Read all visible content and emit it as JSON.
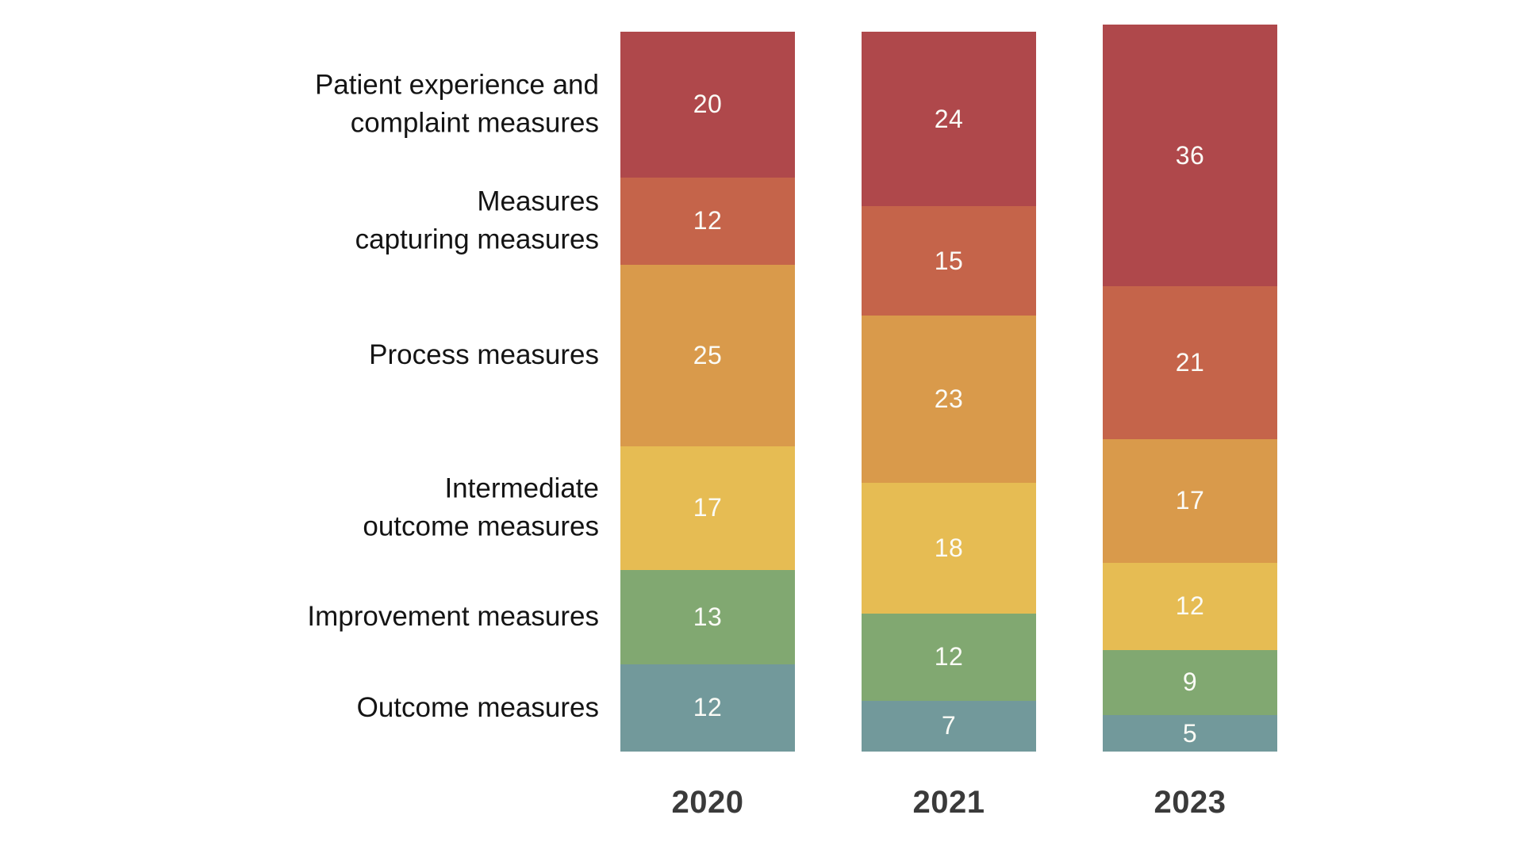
{
  "page": {
    "background_color": "#ffffff",
    "title": ""
  },
  "chart_data": {
    "type": "bar",
    "variant": "stacked-vertical",
    "title": "",
    "xlabel": "",
    "ylabel": "",
    "grid": "off",
    "axes_shown": false,
    "legend_position": "none (series labels listed at left, aligned with first bar segments)",
    "value_labels_shown": true,
    "categories": [
      "2020",
      "2021",
      "2023"
    ],
    "category_totals": [
      99,
      99,
      100
    ],
    "series": [
      {
        "name": "Patient experience and complaint measures",
        "label_lines": [
          "Patient experience and",
          "complaint measures"
        ],
        "color": "#af484b",
        "values": [
          20,
          24,
          36
        ]
      },
      {
        "name": "Measures capturing measures",
        "label_lines": [
          "Measures",
          "capturing measures"
        ],
        "color": "#c5644a",
        "values": [
          12,
          15,
          21
        ]
      },
      {
        "name": "Process measures",
        "label_lines": [
          "Process measures"
        ],
        "color": "#d99a4b",
        "values": [
          25,
          23,
          17
        ]
      },
      {
        "name": "Intermediate outcome measures",
        "label_lines": [
          "Intermediate",
          "outcome measures"
        ],
        "color": "#e6bc53",
        "values": [
          17,
          18,
          12
        ]
      },
      {
        "name": "Improvement measures",
        "label_lines": [
          "Improvement measures"
        ],
        "color": "#81a871",
        "values": [
          13,
          12,
          9
        ]
      },
      {
        "name": "Outcome measures",
        "label_lines": [
          "Outcome measures"
        ],
        "color": "#72999b",
        "values": [
          12,
          7,
          5
        ]
      }
    ],
    "colors": {
      "segment_value_text": "#fbfbf6",
      "category_label_text": "#141414",
      "year_label_text": "#3a3a3a"
    }
  }
}
